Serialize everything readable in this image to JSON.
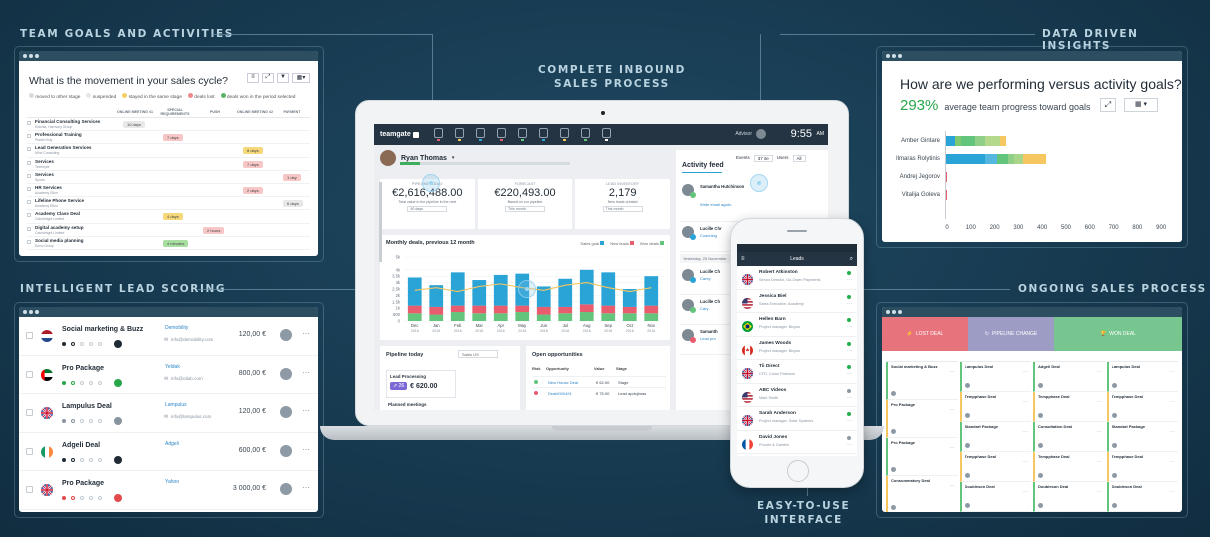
{
  "sections": {
    "team_goals": "TEAM GOALS AND ACTIVITIES",
    "inbound": "COMPLETE INBOUND\nSALES PROCESS",
    "insights": "DATA DRIVEN INSIGHTS",
    "lead_scoring": "INTELLIGENT LEAD SCORING",
    "ongoing": "ONGOING SALES PROCESS",
    "easy": "EASY-TO-USE\nINTERFACE"
  },
  "movement": {
    "title": "What is the movement in your sales cycle?",
    "legend": [
      "moved to other stage",
      "suspended",
      "stayed in the same stage",
      "deals lost",
      "deals won in the period selected"
    ],
    "columns": [
      "ONLINE MEETING #1",
      "SPECIAL REQUIREMENTS",
      "PUSH",
      "ONLINE MEETING #2",
      "PAYMENT"
    ],
    "rows": [
      {
        "name": "Financial Consulting Services",
        "sub": "Estonia, Harmony Group",
        "pill": "10 days",
        "col": 0,
        "color": "#e8e8e8"
      },
      {
        "name": "Professional Training",
        "sub": "Planet Holy",
        "pill": "7 days",
        "col": 1,
        "color": "#f7c6c6"
      },
      {
        "name": "Lead Generation Services",
        "sub": "Mind Consulting",
        "pill": "8 days",
        "col": 3,
        "color": "#f6d77a"
      },
      {
        "name": "Services",
        "sub": "Techmyte",
        "pill": "7 days",
        "col": 3,
        "color": "#f7c6c6"
      },
      {
        "name": "Services",
        "sub": "Sports",
        "pill": "1 day",
        "col": 4,
        "color": "#f7c6c6"
      },
      {
        "name": "HR Services",
        "sub": "Academy Elton",
        "pill": "2 days",
        "col": 3,
        "color": "#f7c6c6"
      },
      {
        "name": "Lifeline Phone Service",
        "sub": "Academy Elton",
        "pill": "6 days",
        "col": 4,
        "color": "#e8e8e8"
      },
      {
        "name": "Academy Class Deal",
        "sub": "Catchbright Limited",
        "pill": "4 days",
        "col": 1,
        "color": "#f6d77a"
      },
      {
        "name": "Digital academy setup",
        "sub": "Catchbright Limited",
        "pill": "2 hours",
        "col": 2,
        "color": "#f7c6c6"
      },
      {
        "name": "Social media planning",
        "sub": "Socio Group",
        "pill": "4 minutes",
        "col": 1,
        "color": "#a8dfa0"
      }
    ]
  },
  "insights": {
    "title": "How are we performing versus activity goals?",
    "percent": "293%",
    "caption": "average team progress toward goals",
    "people": [
      "Amber Gintare",
      "Ilmaras Rolytinis",
      "Andrej Jegorov",
      "Vitalija Goleva"
    ],
    "ticks": [
      "0",
      "100",
      "200",
      "300",
      "400",
      "500",
      "600",
      "700",
      "800",
      "900"
    ]
  },
  "leads": [
    {
      "name": "Social marketing & Buzz",
      "company": "Demobility",
      "email": "info@demobility.com",
      "value": "120,00 €",
      "flag": "nl"
    },
    {
      "name": "Pro Package",
      "company": "Yeldak",
      "email": "info@oilab.com",
      "value": "800,00 €",
      "flag": "ae"
    },
    {
      "name": "Lampulus Deal",
      "company": "Lampulus",
      "email": "info@lampulus.com",
      "value": "120,00 €",
      "flag": "gb"
    },
    {
      "name": "Adgeli Deal",
      "company": "Adgeli",
      "email": "",
      "value": "600,00 €",
      "flag": "ie"
    },
    {
      "name": "Pro Package",
      "company": "Yahoo",
      "email": "",
      "value": "3 000,00 €",
      "flag": "gb"
    }
  ],
  "laptop": {
    "brand": "teamgate",
    "user": "Ryan Thomas",
    "advisor": "Advisor",
    "time": "9:55",
    "ampm": "AM",
    "kpis": [
      {
        "label": "PIPELINE TODAY",
        "value": "€2,616,488.00",
        "sub": "Total value in the pipeline in the next",
        "sel": "90 days"
      },
      {
        "label": "FORECAST",
        "value": "€220,493.00",
        "sub": "Based on our pipeline",
        "sel": "This month"
      },
      {
        "label": "LEAD INVENTORY",
        "value": "2,179",
        "sub": "New leads created",
        "sel": "This month"
      }
    ],
    "chart_title": "Monthly deals, previous 12 month",
    "chart_legend": [
      "Sales goal",
      "New leads",
      "Won deals"
    ],
    "pipeline_title": "Pipeline today",
    "pipeline_select": "Sales US",
    "lead_processing": "Lead Processing",
    "lead_count": "26",
    "lead_amount": "€ 620.00",
    "planned": "Planned meetings",
    "opps_title": "Open opportunities",
    "opps_cols": [
      "Risk",
      "Opportunity",
      "Value",
      "Stage"
    ],
    "opps": [
      {
        "name": "New House Deal",
        "value": "€ 62.00",
        "stage": "Stage"
      },
      {
        "name": "Deal#000491",
        "value": "€ 75.00",
        "stage": "Lead apdojimas"
      }
    ],
    "feed_title": "Activity feed",
    "feed_events": "Events",
    "feed_users": "Users",
    "feed_filter": "37 ite",
    "feed_all": "All",
    "feed": [
      {
        "name": "Samantha Hutchinson",
        "text": "Write email again."
      },
      {
        "name": "Lucille Chr",
        "text": "Coaching"
      },
      {
        "name": "Lucille Ch",
        "text": "Carey"
      },
      {
        "name": "Lucille Ch",
        "text": "Cary"
      },
      {
        "name": "Samanth",
        "text": "Lead pro"
      }
    ],
    "feed_date": "Yesterday, 25 November"
  },
  "chart_data": {
    "type": "bar",
    "title": "Monthly deals, previous 12 month",
    "categories": [
      "Dec 2015",
      "Jan 2016",
      "Feb 2016",
      "Mar 2016",
      "Apr 2016",
      "May 2016",
      "Jun 2016",
      "Jul 2016",
      "Aug 2016",
      "Sep 2016",
      "Oct 2016",
      "Nov 2016"
    ],
    "series": [
      {
        "name": "Won deals",
        "values": [
          0.6,
          0.5,
          0.7,
          0.6,
          0.6,
          0.7,
          0.5,
          0.6,
          0.7,
          0.6,
          0.6,
          0.6
        ]
      },
      {
        "name": "New leads",
        "values": [
          0.6,
          0.6,
          0.5,
          0.6,
          0.6,
          0.5,
          0.6,
          0.5,
          0.6,
          0.6,
          0.5,
          0.6
        ]
      },
      {
        "name": "Sales goal",
        "values": [
          2.2,
          1.7,
          2.6,
          2.0,
          2.4,
          2.5,
          1.6,
          2.2,
          2.7,
          2.6,
          1.4,
          2.3
        ]
      }
    ],
    "line": [
      2.4,
      2.6,
      2.3,
      2.7,
      2.9,
      2.6,
      2.4,
      2.8,
      3.0,
      2.6,
      2.3,
      2.6
    ],
    "yticks": [
      "0",
      "500",
      "1k",
      "1.5k",
      "2k",
      "2.5k",
      "3k",
      "3.5k",
      "4k",
      "5k"
    ],
    "ylim": [
      0,
      5
    ]
  },
  "phone": {
    "title": "Leads",
    "items": [
      {
        "name": "Robert Atkinston",
        "sub": "Senior Director, Go-Owen Payments",
        "status": "#22b04a",
        "flag": "gb"
      },
      {
        "name": "Jessica Biel",
        "sub": "Sales Executive, Academy",
        "status": "#22b04a",
        "flag": "us"
      },
      {
        "name": "Hellen Barn",
        "sub": "Project manager, Bicjmo",
        "status": "#22b04a",
        "flag": "br"
      },
      {
        "name": "James Woods",
        "sub": "Project manager, Bicjmo",
        "status": "#22b04a",
        "flag": "ca"
      },
      {
        "name": "Tii Direct",
        "sub": "CFO, Colon Paterson",
        "status": "#22b04a",
        "flag": "gb"
      },
      {
        "name": "ABC Videos",
        "sub": "Mark Smith",
        "status": "#8f9aa4",
        "flag": "us"
      },
      {
        "name": "Sarah Anderson",
        "sub": "Project manager, Solar Systems",
        "status": "#22b04a",
        "flag": "gb"
      },
      {
        "name": "David Jones",
        "sub": "Procter & Gamble",
        "status": "#8f9aa4",
        "flag": "fr"
      }
    ]
  },
  "pipeline": {
    "cols": [
      "LOST DEAL",
      "PIPELINE CHANGE",
      "WON DEAL"
    ],
    "cards": [
      [
        "Social marketing & Buzz",
        "Pro Package",
        "Pro Package",
        "Consummatory Deal"
      ],
      [
        "Lampulus Deal",
        "Tempphase Deal",
        "Standart Package",
        "Tempphase Deal",
        "Doubleson Deal"
      ],
      [
        "Adgeli Deal",
        "Tempphase Deal",
        "Consultation Deal",
        "Tempphase Deal",
        "Doubleson Deal"
      ],
      [
        "Lampulus Deal",
        "Tempphase Deal",
        "Standart Package",
        "Tempphase Deal",
        "Doubleson Deal"
      ]
    ],
    "amounts": [
      "120,00 €",
      "2,400,00 €",
      "900,00 €"
    ]
  }
}
